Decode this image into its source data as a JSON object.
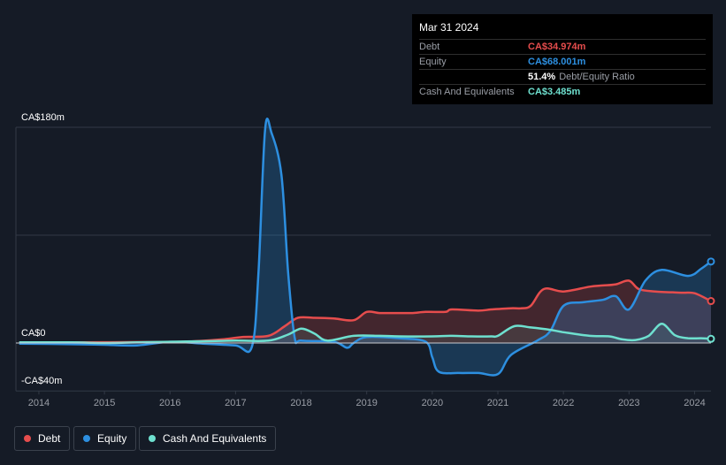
{
  "tooltip": {
    "date": "Mar 31 2024",
    "debt_label": "Debt",
    "debt_value": "CA$34.974m",
    "equity_label": "Equity",
    "equity_value": "CA$68.001m",
    "ratio_value": "51.4%",
    "ratio_label": "Debt/Equity Ratio",
    "cash_label": "Cash And Equivalents",
    "cash_value": "CA$3.485m"
  },
  "legend": {
    "debt": "Debt",
    "equity": "Equity",
    "cash": "Cash And Equivalents"
  },
  "colors": {
    "background": "#151b26",
    "debt": "#e64d4d",
    "equity": "#2d8fe0",
    "cash": "#6ee0cf",
    "grid": "#323a46",
    "zero_line": "#c9ccd1"
  },
  "chart_data": {
    "type": "area",
    "y_unit": "CA$ millions",
    "ylim": [
      -40,
      180
    ],
    "y_ticks": [
      {
        "value": 180,
        "label": "CA$180m"
      },
      {
        "value": 0,
        "label": "CA$0"
      },
      {
        "value": -40,
        "label": "-CA$40m"
      }
    ],
    "xlim": [
      2013.65,
      2024.25
    ],
    "x_ticks": [
      {
        "value": 2014,
        "label": "2014"
      },
      {
        "value": 2015,
        "label": "2015"
      },
      {
        "value": 2016,
        "label": "2016"
      },
      {
        "value": 2017,
        "label": "2017"
      },
      {
        "value": 2018,
        "label": "2018"
      },
      {
        "value": 2019,
        "label": "2019"
      },
      {
        "value": 2020,
        "label": "2020"
      },
      {
        "value": 2021,
        "label": "2021"
      },
      {
        "value": 2022,
        "label": "2022"
      },
      {
        "value": 2023,
        "label": "2023"
      },
      {
        "value": 2024,
        "label": "2024"
      }
    ],
    "grid": true,
    "legend_position": "bottom-left",
    "series": [
      {
        "name": "Debt",
        "key": "debt",
        "points": [
          [
            2013.7,
            0.5
          ],
          [
            2014.5,
            0.5
          ],
          [
            2015.5,
            0.8
          ],
          [
            2016.2,
            1
          ],
          [
            2016.8,
            3
          ],
          [
            2017.1,
            5
          ],
          [
            2017.5,
            6
          ],
          [
            2017.75,
            14
          ],
          [
            2017.95,
            21
          ],
          [
            2018.2,
            21
          ],
          [
            2018.5,
            20.5
          ],
          [
            2018.8,
            19
          ],
          [
            2019.0,
            26
          ],
          [
            2019.2,
            25
          ],
          [
            2019.5,
            25
          ],
          [
            2019.7,
            25
          ],
          [
            2019.9,
            26
          ],
          [
            2020.2,
            26
          ],
          [
            2020.3,
            28
          ],
          [
            2020.7,
            27
          ],
          [
            2020.9,
            28
          ],
          [
            2021.2,
            29
          ],
          [
            2021.35,
            29
          ],
          [
            2021.5,
            31
          ],
          [
            2021.7,
            45
          ],
          [
            2022.0,
            43
          ],
          [
            2022.4,
            47
          ],
          [
            2022.6,
            48
          ],
          [
            2022.8,
            49
          ],
          [
            2023.0,
            52
          ],
          [
            2023.15,
            45
          ],
          [
            2023.4,
            43
          ],
          [
            2023.8,
            42
          ],
          [
            2024.0,
            41.5
          ],
          [
            2024.25,
            35
          ]
        ]
      },
      {
        "name": "Equity",
        "key": "equity",
        "points": [
          [
            2013.7,
            -0.5
          ],
          [
            2014.5,
            -1
          ],
          [
            2015.0,
            -1.5
          ],
          [
            2015.5,
            -2
          ],
          [
            2016.0,
            1
          ],
          [
            2016.5,
            -0.5
          ],
          [
            2017.0,
            -2
          ],
          [
            2017.25,
            -3
          ],
          [
            2017.35,
            60
          ],
          [
            2017.45,
            178
          ],
          [
            2017.55,
            175
          ],
          [
            2017.7,
            140
          ],
          [
            2017.8,
            60
          ],
          [
            2017.9,
            5
          ],
          [
            2018.0,
            2
          ],
          [
            2018.5,
            1
          ],
          [
            2018.7,
            -4
          ],
          [
            2018.8,
            0
          ],
          [
            2019.0,
            5
          ],
          [
            2019.5,
            4
          ],
          [
            2019.9,
            1
          ],
          [
            2020.0,
            -12
          ],
          [
            2020.1,
            -24
          ],
          [
            2020.4,
            -25
          ],
          [
            2020.7,
            -25
          ],
          [
            2021.0,
            -26
          ],
          [
            2021.2,
            -10
          ],
          [
            2021.6,
            2
          ],
          [
            2021.8,
            10
          ],
          [
            2022.0,
            31
          ],
          [
            2022.3,
            34
          ],
          [
            2022.6,
            36
          ],
          [
            2022.8,
            39
          ],
          [
            2023.0,
            28
          ],
          [
            2023.25,
            52
          ],
          [
            2023.5,
            61
          ],
          [
            2023.9,
            56
          ],
          [
            2024.1,
            62
          ],
          [
            2024.25,
            68
          ]
        ]
      },
      {
        "name": "Cash And Equivalents",
        "key": "cash",
        "points": [
          [
            2013.7,
            0.5
          ],
          [
            2014.5,
            0.5
          ],
          [
            2015.0,
            0
          ],
          [
            2015.5,
            0.5
          ],
          [
            2016.0,
            1
          ],
          [
            2016.5,
            1.5
          ],
          [
            2017.0,
            2
          ],
          [
            2017.5,
            2
          ],
          [
            2017.8,
            7
          ],
          [
            2018.0,
            12
          ],
          [
            2018.2,
            8
          ],
          [
            2018.4,
            2
          ],
          [
            2018.8,
            6
          ],
          [
            2019.2,
            6
          ],
          [
            2019.5,
            5.5
          ],
          [
            2020.0,
            5.5
          ],
          [
            2020.3,
            6
          ],
          [
            2020.6,
            5.5
          ],
          [
            2020.9,
            5.5
          ],
          [
            2021.0,
            6
          ],
          [
            2021.25,
            14
          ],
          [
            2021.5,
            13
          ],
          [
            2021.8,
            11
          ],
          [
            2022.0,
            9
          ],
          [
            2022.4,
            6
          ],
          [
            2022.7,
            5.5
          ],
          [
            2022.9,
            3
          ],
          [
            2023.1,
            2.5
          ],
          [
            2023.3,
            6
          ],
          [
            2023.5,
            16
          ],
          [
            2023.7,
            6.5
          ],
          [
            2023.9,
            4
          ],
          [
            2024.1,
            4
          ],
          [
            2024.25,
            3.5
          ]
        ]
      }
    ]
  }
}
